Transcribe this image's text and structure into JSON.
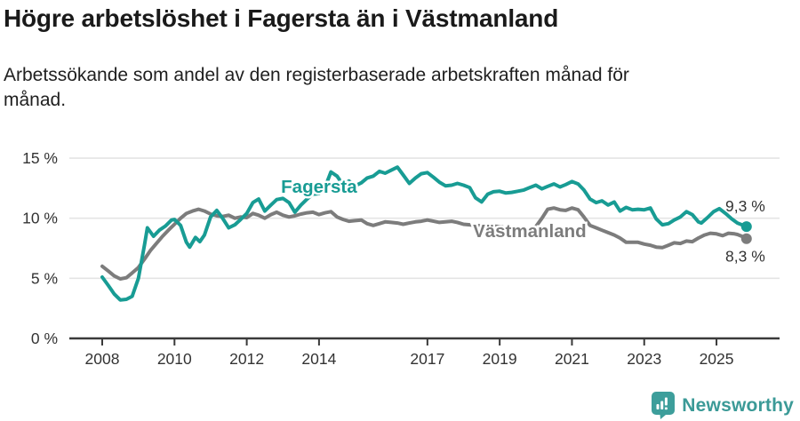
{
  "header": {
    "title": "Högre arbetslöshet i Fagersta än i Västmanland",
    "subtitle": "Arbetssökande som andel av den registerbaserade arbetskraften månad för månad."
  },
  "footer": {
    "brand": "Newsworthy",
    "brand_color": "#3b9a97",
    "icon": "newsworthy-bubble-barchart-icon",
    "icon_color": "#3d9e9b"
  },
  "colors": {
    "accent_teal": "#189c94",
    "neutral_gray": "#7c7c7c",
    "gridline": "#e4e4e4",
    "axis": "#3a3a3a",
    "tick_text": "#333333"
  },
  "chart_data": {
    "type": "line",
    "title": "Högre arbetslöshet i Fagersta än i Västmanland",
    "subtitle": "Arbetssökande som andel av den registerbaserade arbetskraften månad för månad.",
    "unit": "%",
    "grid": true,
    "legend_position": "inline-labels",
    "x_axis": {
      "range": [
        2007.1,
        2026.8
      ],
      "ticks": [
        2008,
        2010,
        2012,
        2014,
        2017,
        2019,
        2021,
        2023,
        2025
      ],
      "tick_labels": [
        "2008",
        "2010",
        "2012",
        "2014",
        "2017",
        "2019",
        "2021",
        "2023",
        "2025"
      ]
    },
    "y_axis": {
      "range": [
        0,
        15
      ],
      "ticks": [
        0,
        5,
        10,
        15
      ],
      "tick_labels": [
        "0 %",
        "5 %",
        "10 %",
        "15 %"
      ]
    },
    "series": [
      {
        "id": "vastmanland",
        "name": "Västmanland",
        "color": "#7c7c7c",
        "end_label": "8,3 %",
        "end_value": 8.3,
        "label_anchor": {
          "year": 2019.83,
          "value": 8.95
        },
        "points": [
          [
            2008.0,
            6.0
          ],
          [
            2008.17,
            5.6
          ],
          [
            2008.33,
            5.2
          ],
          [
            2008.5,
            4.95
          ],
          [
            2008.67,
            5.05
          ],
          [
            2008.83,
            5.45
          ],
          [
            2009.0,
            5.9
          ],
          [
            2009.17,
            6.6
          ],
          [
            2009.33,
            7.3
          ],
          [
            2009.5,
            7.9
          ],
          [
            2009.67,
            8.5
          ],
          [
            2009.83,
            9.0
          ],
          [
            2010.0,
            9.5
          ],
          [
            2010.17,
            10.0
          ],
          [
            2010.33,
            10.4
          ],
          [
            2010.5,
            10.6
          ],
          [
            2010.67,
            10.75
          ],
          [
            2010.83,
            10.6
          ],
          [
            2011.0,
            10.35
          ],
          [
            2011.17,
            10.2
          ],
          [
            2011.33,
            10.15
          ],
          [
            2011.5,
            10.25
          ],
          [
            2011.67,
            10.0
          ],
          [
            2011.83,
            10.1
          ],
          [
            2012.0,
            10.05
          ],
          [
            2012.17,
            10.4
          ],
          [
            2012.33,
            10.25
          ],
          [
            2012.5,
            10.0
          ],
          [
            2012.67,
            10.3
          ],
          [
            2012.83,
            10.5
          ],
          [
            2013.0,
            10.25
          ],
          [
            2013.17,
            10.1
          ],
          [
            2013.33,
            10.2
          ],
          [
            2013.5,
            10.35
          ],
          [
            2013.67,
            10.45
          ],
          [
            2013.83,
            10.5
          ],
          [
            2014.0,
            10.3
          ],
          [
            2014.17,
            10.45
          ],
          [
            2014.33,
            10.55
          ],
          [
            2014.5,
            10.1
          ],
          [
            2014.67,
            9.9
          ],
          [
            2014.83,
            9.75
          ],
          [
            2015.0,
            9.8
          ],
          [
            2015.17,
            9.85
          ],
          [
            2015.33,
            9.55
          ],
          [
            2015.5,
            9.4
          ],
          [
            2015.67,
            9.55
          ],
          [
            2015.83,
            9.7
          ],
          [
            2016.0,
            9.65
          ],
          [
            2016.17,
            9.6
          ],
          [
            2016.33,
            9.5
          ],
          [
            2016.5,
            9.6
          ],
          [
            2016.67,
            9.7
          ],
          [
            2016.83,
            9.75
          ],
          [
            2017.0,
            9.85
          ],
          [
            2017.17,
            9.75
          ],
          [
            2017.33,
            9.65
          ],
          [
            2017.5,
            9.7
          ],
          [
            2017.67,
            9.75
          ],
          [
            2017.83,
            9.65
          ],
          [
            2018.0,
            9.5
          ],
          [
            2018.17,
            9.45
          ],
          [
            2018.33,
            9.4
          ],
          [
            2018.5,
            9.35
          ],
          [
            2018.67,
            9.3
          ],
          [
            2018.83,
            9.35
          ],
          [
            2019.0,
            9.3
          ],
          [
            2019.17,
            9.25
          ],
          [
            2019.33,
            9.2
          ],
          [
            2019.5,
            9.2
          ],
          [
            2019.67,
            9.1
          ],
          [
            2019.83,
            9.0
          ],
          [
            2020.0,
            9.3
          ],
          [
            2020.17,
            10.0
          ],
          [
            2020.33,
            10.75
          ],
          [
            2020.5,
            10.85
          ],
          [
            2020.67,
            10.7
          ],
          [
            2020.83,
            10.65
          ],
          [
            2021.0,
            10.85
          ],
          [
            2021.17,
            10.7
          ],
          [
            2021.33,
            10.1
          ],
          [
            2021.5,
            9.4
          ],
          [
            2021.67,
            9.2
          ],
          [
            2021.83,
            9.0
          ],
          [
            2022.0,
            8.8
          ],
          [
            2022.17,
            8.6
          ],
          [
            2022.33,
            8.35
          ],
          [
            2022.5,
            8.0
          ],
          [
            2022.67,
            8.0
          ],
          [
            2022.83,
            8.0
          ],
          [
            2023.0,
            7.85
          ],
          [
            2023.17,
            7.75
          ],
          [
            2023.33,
            7.6
          ],
          [
            2023.5,
            7.55
          ],
          [
            2023.67,
            7.75
          ],
          [
            2023.83,
            7.95
          ],
          [
            2024.0,
            7.9
          ],
          [
            2024.17,
            8.1
          ],
          [
            2024.33,
            8.05
          ],
          [
            2024.5,
            8.35
          ],
          [
            2024.67,
            8.6
          ],
          [
            2024.83,
            8.75
          ],
          [
            2025.0,
            8.7
          ],
          [
            2025.17,
            8.55
          ],
          [
            2025.33,
            8.75
          ],
          [
            2025.5,
            8.7
          ],
          [
            2025.58,
            8.65
          ],
          [
            2025.75,
            8.45
          ],
          [
            2025.83,
            8.3
          ]
        ]
      },
      {
        "id": "fagersta",
        "name": "Fagersta",
        "color": "#189c94",
        "end_label": "9,3 %",
        "end_value": 9.3,
        "label_anchor": {
          "year": 2014.0,
          "value": 12.65
        },
        "points": [
          [
            2008.0,
            5.1
          ],
          [
            2008.17,
            4.4
          ],
          [
            2008.33,
            3.7
          ],
          [
            2008.5,
            3.2
          ],
          [
            2008.67,
            3.25
          ],
          [
            2008.83,
            3.5
          ],
          [
            2009.0,
            5.0
          ],
          [
            2009.17,
            7.8
          ],
          [
            2009.25,
            9.2
          ],
          [
            2009.42,
            8.5
          ],
          [
            2009.58,
            9.0
          ],
          [
            2009.75,
            9.35
          ],
          [
            2009.92,
            9.85
          ],
          [
            2010.0,
            9.9
          ],
          [
            2010.17,
            9.4
          ],
          [
            2010.33,
            8.0
          ],
          [
            2010.42,
            7.6
          ],
          [
            2010.58,
            8.4
          ],
          [
            2010.7,
            8.05
          ],
          [
            2010.83,
            8.6
          ],
          [
            2011.0,
            10.1
          ],
          [
            2011.17,
            10.65
          ],
          [
            2011.33,
            10.0
          ],
          [
            2011.5,
            9.2
          ],
          [
            2011.67,
            9.45
          ],
          [
            2011.83,
            9.9
          ],
          [
            2012.0,
            10.4
          ],
          [
            2012.17,
            11.3
          ],
          [
            2012.33,
            11.6
          ],
          [
            2012.5,
            10.6
          ],
          [
            2012.67,
            11.1
          ],
          [
            2012.83,
            11.55
          ],
          [
            2013.0,
            11.65
          ],
          [
            2013.17,
            11.3
          ],
          [
            2013.33,
            10.5
          ],
          [
            2013.5,
            11.1
          ],
          [
            2013.67,
            11.6
          ],
          [
            2013.83,
            12.0
          ],
          [
            2014.0,
            12.05
          ],
          [
            2014.17,
            12.6
          ],
          [
            2014.33,
            13.85
          ],
          [
            2014.5,
            13.5
          ],
          [
            2014.67,
            12.75
          ],
          [
            2014.83,
            13.1
          ],
          [
            2015.0,
            12.7
          ],
          [
            2015.17,
            12.95
          ],
          [
            2015.33,
            13.35
          ],
          [
            2015.5,
            13.5
          ],
          [
            2015.67,
            13.9
          ],
          [
            2015.83,
            13.75
          ],
          [
            2016.0,
            14.0
          ],
          [
            2016.17,
            14.25
          ],
          [
            2016.33,
            13.6
          ],
          [
            2016.5,
            12.9
          ],
          [
            2016.67,
            13.35
          ],
          [
            2016.83,
            13.7
          ],
          [
            2017.0,
            13.8
          ],
          [
            2017.17,
            13.4
          ],
          [
            2017.33,
            13.0
          ],
          [
            2017.5,
            12.7
          ],
          [
            2017.67,
            12.75
          ],
          [
            2017.83,
            12.9
          ],
          [
            2018.0,
            12.75
          ],
          [
            2018.17,
            12.55
          ],
          [
            2018.33,
            11.7
          ],
          [
            2018.5,
            11.35
          ],
          [
            2018.67,
            12.0
          ],
          [
            2018.83,
            12.2
          ],
          [
            2019.0,
            12.25
          ],
          [
            2019.17,
            12.1
          ],
          [
            2019.33,
            12.15
          ],
          [
            2019.5,
            12.25
          ],
          [
            2019.67,
            12.35
          ],
          [
            2019.83,
            12.55
          ],
          [
            2020.0,
            12.75
          ],
          [
            2020.17,
            12.45
          ],
          [
            2020.33,
            12.65
          ],
          [
            2020.5,
            12.85
          ],
          [
            2020.67,
            12.6
          ],
          [
            2020.83,
            12.8
          ],
          [
            2021.0,
            13.05
          ],
          [
            2021.17,
            12.85
          ],
          [
            2021.33,
            12.35
          ],
          [
            2021.5,
            11.6
          ],
          [
            2021.67,
            11.3
          ],
          [
            2021.83,
            11.45
          ],
          [
            2022.0,
            11.1
          ],
          [
            2022.17,
            11.35
          ],
          [
            2022.33,
            10.6
          ],
          [
            2022.5,
            10.9
          ],
          [
            2022.67,
            10.7
          ],
          [
            2022.83,
            10.75
          ],
          [
            2023.0,
            10.7
          ],
          [
            2023.17,
            10.85
          ],
          [
            2023.33,
            9.95
          ],
          [
            2023.5,
            9.45
          ],
          [
            2023.67,
            9.55
          ],
          [
            2023.83,
            9.85
          ],
          [
            2024.0,
            10.1
          ],
          [
            2024.17,
            10.55
          ],
          [
            2024.33,
            10.3
          ],
          [
            2024.5,
            9.7
          ],
          [
            2024.58,
            9.6
          ],
          [
            2024.75,
            10.05
          ],
          [
            2024.92,
            10.55
          ],
          [
            2025.08,
            10.8
          ],
          [
            2025.25,
            10.4
          ],
          [
            2025.42,
            9.95
          ],
          [
            2025.58,
            9.6
          ],
          [
            2025.75,
            9.4
          ],
          [
            2025.83,
            9.3
          ]
        ]
      }
    ]
  }
}
